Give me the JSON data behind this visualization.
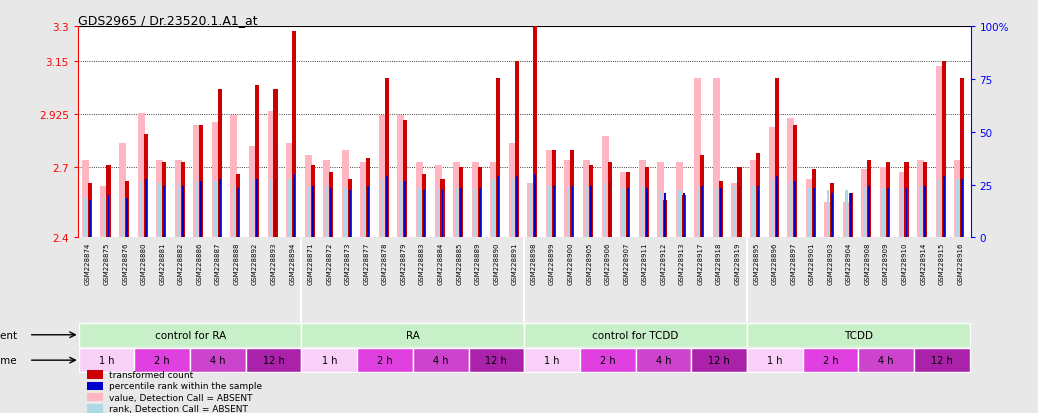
{
  "title": "GDS2965 / Dr.23520.1.A1_at",
  "ylim": [
    2.4,
    3.3
  ],
  "yticks": [
    2.4,
    2.7,
    2.925,
    3.15,
    3.3
  ],
  "ytick_labels": [
    "2.4",
    "2.7",
    "2.925",
    "3.15",
    "3.3"
  ],
  "right_yticks": [
    0,
    25,
    50,
    75,
    100
  ],
  "right_ytick_labels": [
    "0",
    "25",
    "50",
    "75",
    "100%"
  ],
  "samples": [
    "GSM228874",
    "GSM228875",
    "GSM228876",
    "GSM228880",
    "GSM228881",
    "GSM228882",
    "GSM228886",
    "GSM228887",
    "GSM228888",
    "GSM228892",
    "GSM228893",
    "GSM228894",
    "GSM228871",
    "GSM228872",
    "GSM228873",
    "GSM228877",
    "GSM228878",
    "GSM228879",
    "GSM228883",
    "GSM228884",
    "GSM228885",
    "GSM228889",
    "GSM228890",
    "GSM228891",
    "GSM228898",
    "GSM228899",
    "GSM228900",
    "GSM228905",
    "GSM228906",
    "GSM228907",
    "GSM228911",
    "GSM228912",
    "GSM228913",
    "GSM228917",
    "GSM228918",
    "GSM228919",
    "GSM228895",
    "GSM228896",
    "GSM228897",
    "GSM228901",
    "GSM228903",
    "GSM228904",
    "GSM228908",
    "GSM228909",
    "GSM228910",
    "GSM228914",
    "GSM228915",
    "GSM228916"
  ],
  "red_values": [
    2.63,
    2.71,
    2.64,
    2.84,
    2.72,
    2.72,
    2.88,
    3.03,
    2.67,
    3.05,
    3.03,
    3.28,
    2.71,
    2.68,
    2.65,
    2.74,
    3.08,
    2.9,
    2.67,
    2.65,
    2.7,
    2.7,
    3.08,
    3.15,
    3.3,
    2.77,
    2.77,
    2.71,
    2.72,
    2.68,
    2.7,
    2.56,
    2.58,
    2.75,
    2.64,
    2.7,
    2.76,
    3.08,
    2.88,
    2.69,
    2.63,
    2.59,
    2.73,
    2.72,
    2.72,
    2.72,
    3.15,
    3.08
  ],
  "pink_values": [
    2.73,
    2.62,
    2.8,
    2.93,
    2.73,
    2.73,
    2.88,
    2.89,
    2.92,
    2.79,
    2.94,
    2.8,
    2.75,
    2.73,
    2.77,
    2.72,
    2.92,
    2.92,
    2.72,
    2.71,
    2.72,
    2.72,
    2.72,
    2.8,
    2.63,
    2.77,
    2.73,
    2.73,
    2.83,
    2.68,
    2.73,
    2.72,
    2.72,
    3.08,
    3.08,
    2.63,
    2.73,
    2.87,
    2.91,
    2.65,
    2.55,
    2.55,
    2.69,
    2.7,
    2.68,
    2.73,
    3.13,
    2.73
  ],
  "blue_values": [
    2.56,
    2.58,
    2.57,
    2.65,
    2.62,
    2.62,
    2.64,
    2.65,
    2.61,
    2.65,
    2.65,
    2.67,
    2.62,
    2.61,
    2.6,
    2.62,
    2.66,
    2.64,
    2.6,
    2.6,
    2.61,
    2.61,
    2.66,
    2.66,
    2.67,
    2.62,
    2.62,
    2.62,
    2.63,
    2.61,
    2.61,
    2.59,
    2.59,
    2.62,
    2.61,
    2.62,
    2.62,
    2.66,
    2.64,
    2.61,
    2.59,
    2.59,
    2.62,
    2.61,
    2.61,
    2.62,
    2.66,
    2.65
  ],
  "light_blue_values": [
    2.57,
    2.57,
    2.57,
    2.64,
    2.63,
    2.63,
    2.64,
    2.64,
    2.62,
    2.65,
    2.65,
    2.65,
    2.62,
    2.62,
    2.61,
    2.62,
    2.65,
    2.64,
    2.61,
    2.61,
    2.61,
    2.61,
    2.65,
    2.65,
    2.63,
    2.62,
    2.62,
    2.62,
    2.63,
    2.61,
    2.62,
    2.6,
    2.6,
    2.62,
    2.61,
    2.62,
    2.62,
    2.65,
    2.64,
    2.61,
    2.6,
    2.6,
    2.61,
    2.61,
    2.61,
    2.62,
    2.65,
    2.65
  ],
  "agent_segments": [
    {
      "label": "control for RA",
      "start": 0,
      "end": 12
    },
    {
      "label": "RA",
      "start": 12,
      "end": 24
    },
    {
      "label": "control for TCDD",
      "start": 24,
      "end": 36
    },
    {
      "label": "TCDD",
      "start": 36,
      "end": 48
    }
  ],
  "time_groups": [
    {
      "label": "1 h",
      "start": 0,
      "end": 3
    },
    {
      "label": "2 h",
      "start": 3,
      "end": 6
    },
    {
      "label": "4 h",
      "start": 6,
      "end": 9
    },
    {
      "label": "12 h",
      "start": 9,
      "end": 12
    },
    {
      "label": "1 h",
      "start": 12,
      "end": 15
    },
    {
      "label": "2 h",
      "start": 15,
      "end": 18
    },
    {
      "label": "4 h",
      "start": 18,
      "end": 21
    },
    {
      "label": "12 h",
      "start": 21,
      "end": 24
    },
    {
      "label": "1 h",
      "start": 24,
      "end": 27
    },
    {
      "label": "2 h",
      "start": 27,
      "end": 30
    },
    {
      "label": "4 h",
      "start": 30,
      "end": 33
    },
    {
      "label": "12 h",
      "start": 33,
      "end": 36
    },
    {
      "label": "1 h",
      "start": 36,
      "end": 39
    },
    {
      "label": "2 h",
      "start": 39,
      "end": 42
    },
    {
      "label": "4 h",
      "start": 42,
      "end": 45
    },
    {
      "label": "12 h",
      "start": 45,
      "end": 48
    }
  ],
  "time_colors": {
    "1 h": "#f8d0f8",
    "2 h": "#e040e0",
    "4 h": "#cc44cc",
    "12 h": "#aa22aa"
  },
  "agent_color": "#c8f0c8",
  "red_color": "#cc0000",
  "pink_color": "#ffb6c1",
  "blue_color": "#0000cc",
  "light_blue_color": "#add8e6",
  "background_color": "#e8e8e8",
  "plot_bg_color": "#ffffff",
  "xtick_bg_color": "#d8d8d8"
}
